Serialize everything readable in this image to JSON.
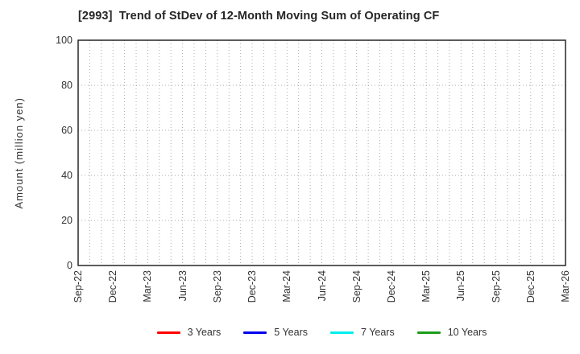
{
  "chart_data": {
    "type": "line",
    "title": "[2993]  Trend of StDev of 12-Month Moving Sum of Operating CF",
    "xlabel": "",
    "ylabel": "Amount (million yen)",
    "ylim": [
      0,
      100
    ],
    "yticks": [
      0,
      20,
      40,
      60,
      80,
      100
    ],
    "x_tick_labels": [
      "Sep-22",
      "Dec-22",
      "Mar-23",
      "Jun-23",
      "Sep-23",
      "Dec-23",
      "Mar-24",
      "Jun-24",
      "Sep-24",
      "Dec-24",
      "Mar-25",
      "Jun-25",
      "Sep-25",
      "Dec-25",
      "Mar-26"
    ],
    "x_minor_divisions_per_tick": 3,
    "grid": true,
    "grid_style": "dotted",
    "legend_position": "bottom",
    "series": [
      {
        "name": "3 Years",
        "color": "#ff0000",
        "values": []
      },
      {
        "name": "5 Years",
        "color": "#0000ee",
        "values": []
      },
      {
        "name": "7 Years",
        "color": "#00eeee",
        "values": []
      },
      {
        "name": "10 Years",
        "color": "#1c9b1c",
        "values": []
      }
    ]
  },
  "colors": {
    "grid": "#ababab",
    "axis_border": "#262626",
    "text": "#333333",
    "background": "#ffffff"
  }
}
